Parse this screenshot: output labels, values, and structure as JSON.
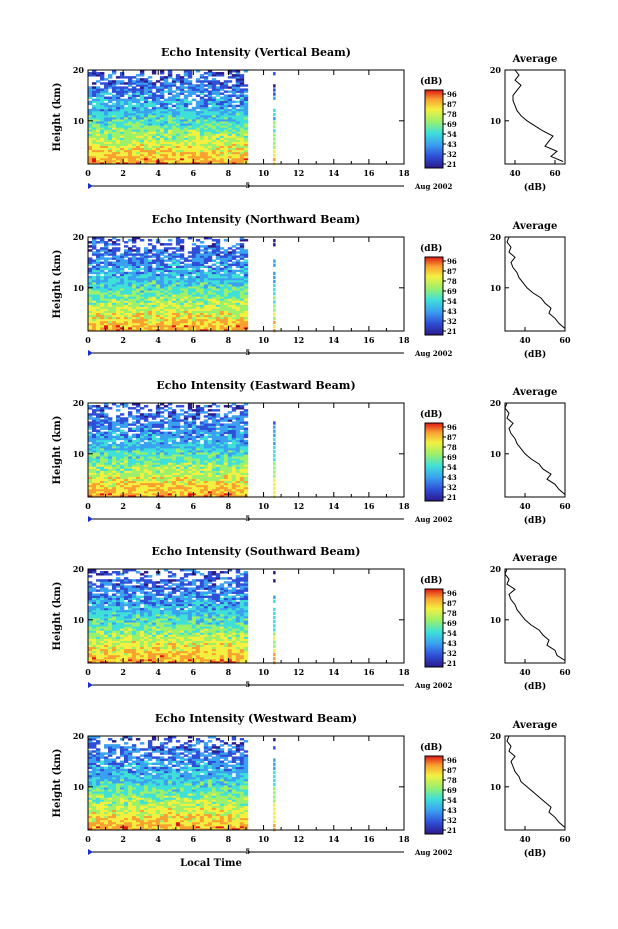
{
  "figure": {
    "xlabel": "Local Time",
    "date_label": "Aug 2002",
    "day_marker": "5",
    "colorbar_unit": "(dB)",
    "colorbar_ticks": [
      "96",
      "87",
      "78",
      "69",
      "54",
      "43",
      "32",
      "21"
    ],
    "avg_title": "Average",
    "avg_xlabel": "(dB)"
  },
  "chart_data": [
    {
      "type": "heatmap",
      "title": "Echo Intensity (Vertical Beam)",
      "xlabel": "",
      "ylabel": "Height (km)",
      "xlim": [
        0,
        18
      ],
      "ylim": [
        1.5,
        20
      ],
      "xticks": [
        0,
        2,
        4,
        6,
        8,
        10,
        12,
        14,
        16,
        18
      ],
      "yticks": [
        10,
        20
      ],
      "data_time_range": [
        0,
        9.1
      ],
      "extra_column_time": 10.6,
      "colorbar_range": [
        21,
        96
      ],
      "average_profile": {
        "xlim": [
          35,
          65
        ],
        "xticks": [
          40,
          60
        ],
        "yticks": [
          10,
          20
        ],
        "height": [
          2,
          3,
          4,
          5,
          6,
          7,
          8,
          9,
          10,
          11,
          12,
          13,
          14,
          15,
          16,
          17,
          18,
          19,
          20
        ],
        "db": [
          64,
          58,
          61,
          55,
          57,
          59,
          54,
          50,
          46,
          43,
          41,
          40,
          39,
          39,
          41,
          43,
          40,
          42,
          40
        ]
      }
    },
    {
      "type": "heatmap",
      "title": "Echo Intensity (Northward Beam)",
      "xlabel": "",
      "ylabel": "Height (km)",
      "xlim": [
        0,
        18
      ],
      "ylim": [
        1.5,
        20
      ],
      "xticks": [
        0,
        2,
        4,
        6,
        8,
        10,
        12,
        14,
        16,
        18
      ],
      "yticks": [
        10,
        20
      ],
      "data_time_range": [
        0,
        9.1
      ],
      "extra_column_time": 10.6,
      "colorbar_range": [
        21,
        96
      ],
      "average_profile": {
        "xlim": [
          30,
          60
        ],
        "xticks": [
          40,
          60
        ],
        "yticks": [
          10,
          20
        ],
        "height": [
          2,
          3,
          4,
          5,
          6,
          7,
          8,
          9,
          10,
          11,
          12,
          13,
          14,
          15,
          16,
          17,
          18,
          19,
          20
        ],
        "db": [
          60,
          57,
          55,
          52,
          53,
          50,
          48,
          44,
          41,
          39,
          37,
          36,
          34,
          33,
          35,
          32,
          33,
          31,
          32
        ]
      }
    },
    {
      "type": "heatmap",
      "title": "Echo Intensity (Eastward Beam)",
      "xlabel": "",
      "ylabel": "Height (km)",
      "xlim": [
        0,
        18
      ],
      "ylim": [
        1.5,
        20
      ],
      "xticks": [
        0,
        2,
        4,
        6,
        8,
        10,
        12,
        14,
        16,
        18
      ],
      "yticks": [
        10,
        20
      ],
      "data_time_range": [
        0,
        9.1
      ],
      "extra_column_time": 10.6,
      "colorbar_range": [
        21,
        96
      ],
      "average_profile": {
        "xlim": [
          30,
          60
        ],
        "xticks": [
          40,
          60
        ],
        "yticks": [
          10,
          20
        ],
        "height": [
          2,
          3,
          4,
          5,
          6,
          7,
          8,
          9,
          10,
          11,
          12,
          13,
          14,
          15,
          16,
          17,
          18,
          19,
          20
        ],
        "db": [
          60,
          57,
          55,
          51,
          53,
          49,
          47,
          43,
          40,
          38,
          36,
          35,
          33,
          32,
          34,
          31,
          32,
          30,
          31
        ]
      }
    },
    {
      "type": "heatmap",
      "title": "Echo Intensity (Southward Beam)",
      "xlabel": "",
      "ylabel": "Height (km)",
      "xlim": [
        0,
        18
      ],
      "ylim": [
        1.5,
        20
      ],
      "xticks": [
        0,
        2,
        4,
        6,
        8,
        10,
        12,
        14,
        16,
        18
      ],
      "yticks": [
        10,
        20
      ],
      "data_time_range": [
        0,
        9.1
      ],
      "extra_column_time": 10.6,
      "colorbar_range": [
        21,
        96
      ],
      "average_profile": {
        "xlim": [
          30,
          60
        ],
        "xticks": [
          40,
          60
        ],
        "yticks": [
          10,
          20
        ],
        "height": [
          2,
          3,
          4,
          5,
          6,
          7,
          8,
          9,
          10,
          11,
          12,
          13,
          14,
          15,
          16,
          17,
          18,
          19,
          20
        ],
        "db": [
          60,
          56,
          55,
          51,
          52,
          49,
          47,
          43,
          40,
          38,
          36,
          35,
          33,
          32,
          35,
          31,
          32,
          30,
          31
        ]
      }
    },
    {
      "type": "heatmap",
      "title": "Echo Intensity (Westward Beam)",
      "xlabel": "Local Time",
      "ylabel": "Height (km)",
      "xlim": [
        0,
        18
      ],
      "ylim": [
        1.5,
        20
      ],
      "xticks": [
        0,
        2,
        4,
        6,
        8,
        10,
        12,
        14,
        16,
        18
      ],
      "yticks": [
        10,
        20
      ],
      "data_time_range": [
        0,
        9.1
      ],
      "extra_column_time": 10.6,
      "colorbar_range": [
        21,
        96
      ],
      "average_profile": {
        "xlim": [
          30,
          60
        ],
        "xticks": [
          40,
          60
        ],
        "yticks": [
          10,
          20
        ],
        "height": [
          2,
          3,
          4,
          5,
          6,
          7,
          8,
          9,
          10,
          11,
          12,
          13,
          14,
          15,
          16,
          17,
          18,
          19,
          20
        ],
        "db": [
          60,
          57,
          55,
          52,
          53,
          50,
          47,
          44,
          41,
          38,
          37,
          35,
          34,
          33,
          35,
          32,
          33,
          31,
          32
        ]
      }
    }
  ]
}
